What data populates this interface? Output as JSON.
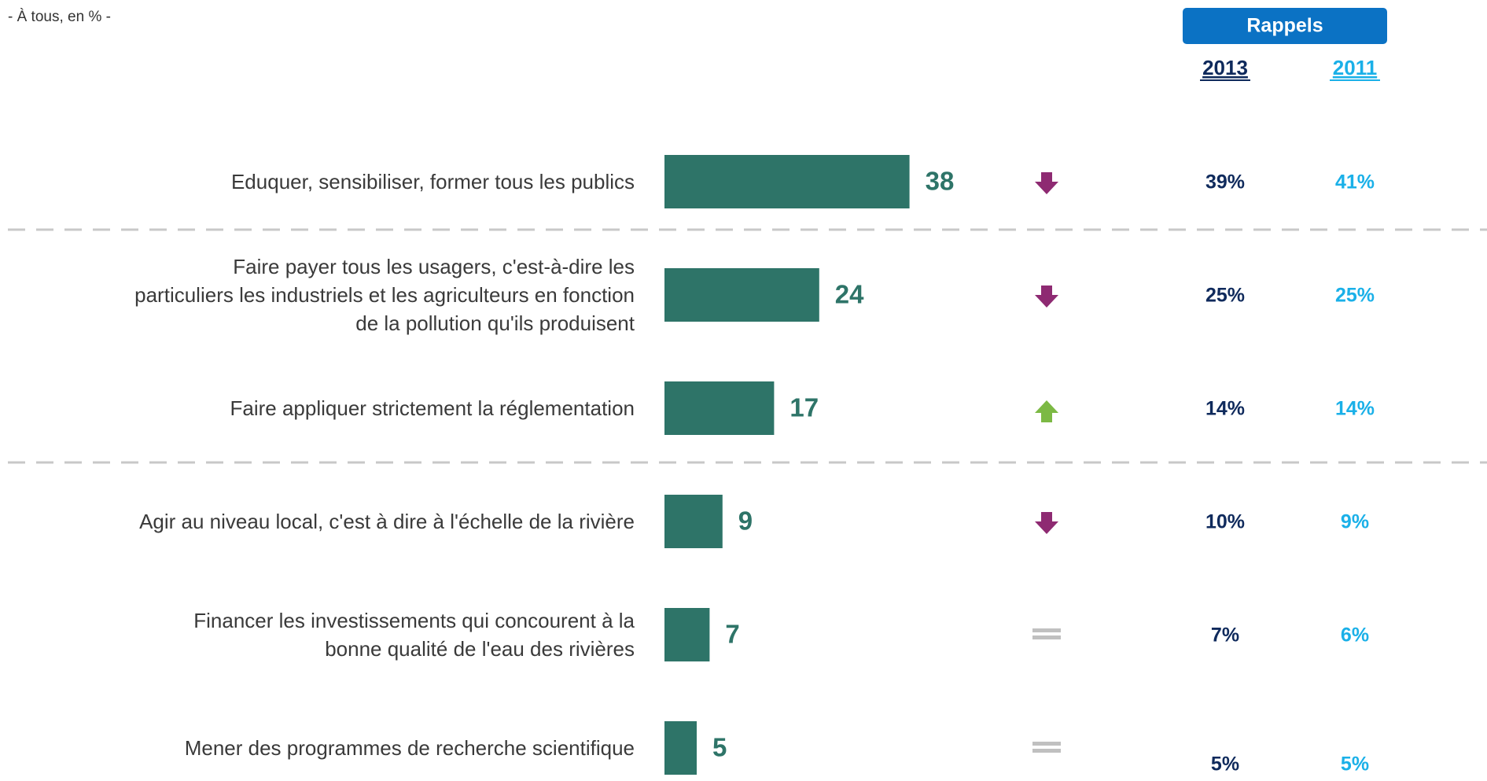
{
  "chart_data": {
    "type": "bar",
    "subtitle": "- À tous, en % -",
    "recall_title": "Rappels",
    "categories": [
      "Eduquer, sensibiliser, former tous les publics",
      "Faire payer tous les usagers, c'est-à-dire les particuliers les industriels et les agriculteurs en fonction de la pollution qu'ils produisent",
      "Faire appliquer strictement la réglementation",
      "Agir au niveau local, c'est à dire à l'échelle de la rivière",
      "Financer les investissements qui concourent à la bonne qualité de l'eau des rivières",
      "Mener des programmes de recherche scientifique"
    ],
    "values": [
      38,
      24,
      17,
      9,
      7,
      5
    ],
    "color": "#2e7468",
    "trends": [
      "down",
      "down",
      "up",
      "down",
      "equal",
      "equal"
    ],
    "trend_colors": {
      "down": "#8e2a72",
      "up": "#7cb944",
      "equal": "#c0c0c0"
    },
    "recalls": [
      {
        "name": "2013",
        "color": "#0f2a5c",
        "values": [
          39,
          25,
          14,
          10,
          7,
          5
        ],
        "value_labels": [
          "39%",
          "25%",
          "14%",
          "10%",
          "7%",
          "5%"
        ]
      },
      {
        "name": "2011",
        "color": "#1ab0e8",
        "values": [
          41,
          25,
          14,
          9,
          6,
          5
        ],
        "value_labels": [
          "41%",
          "25%",
          "14%",
          "9%",
          "6%",
          "5%"
        ]
      }
    ]
  }
}
